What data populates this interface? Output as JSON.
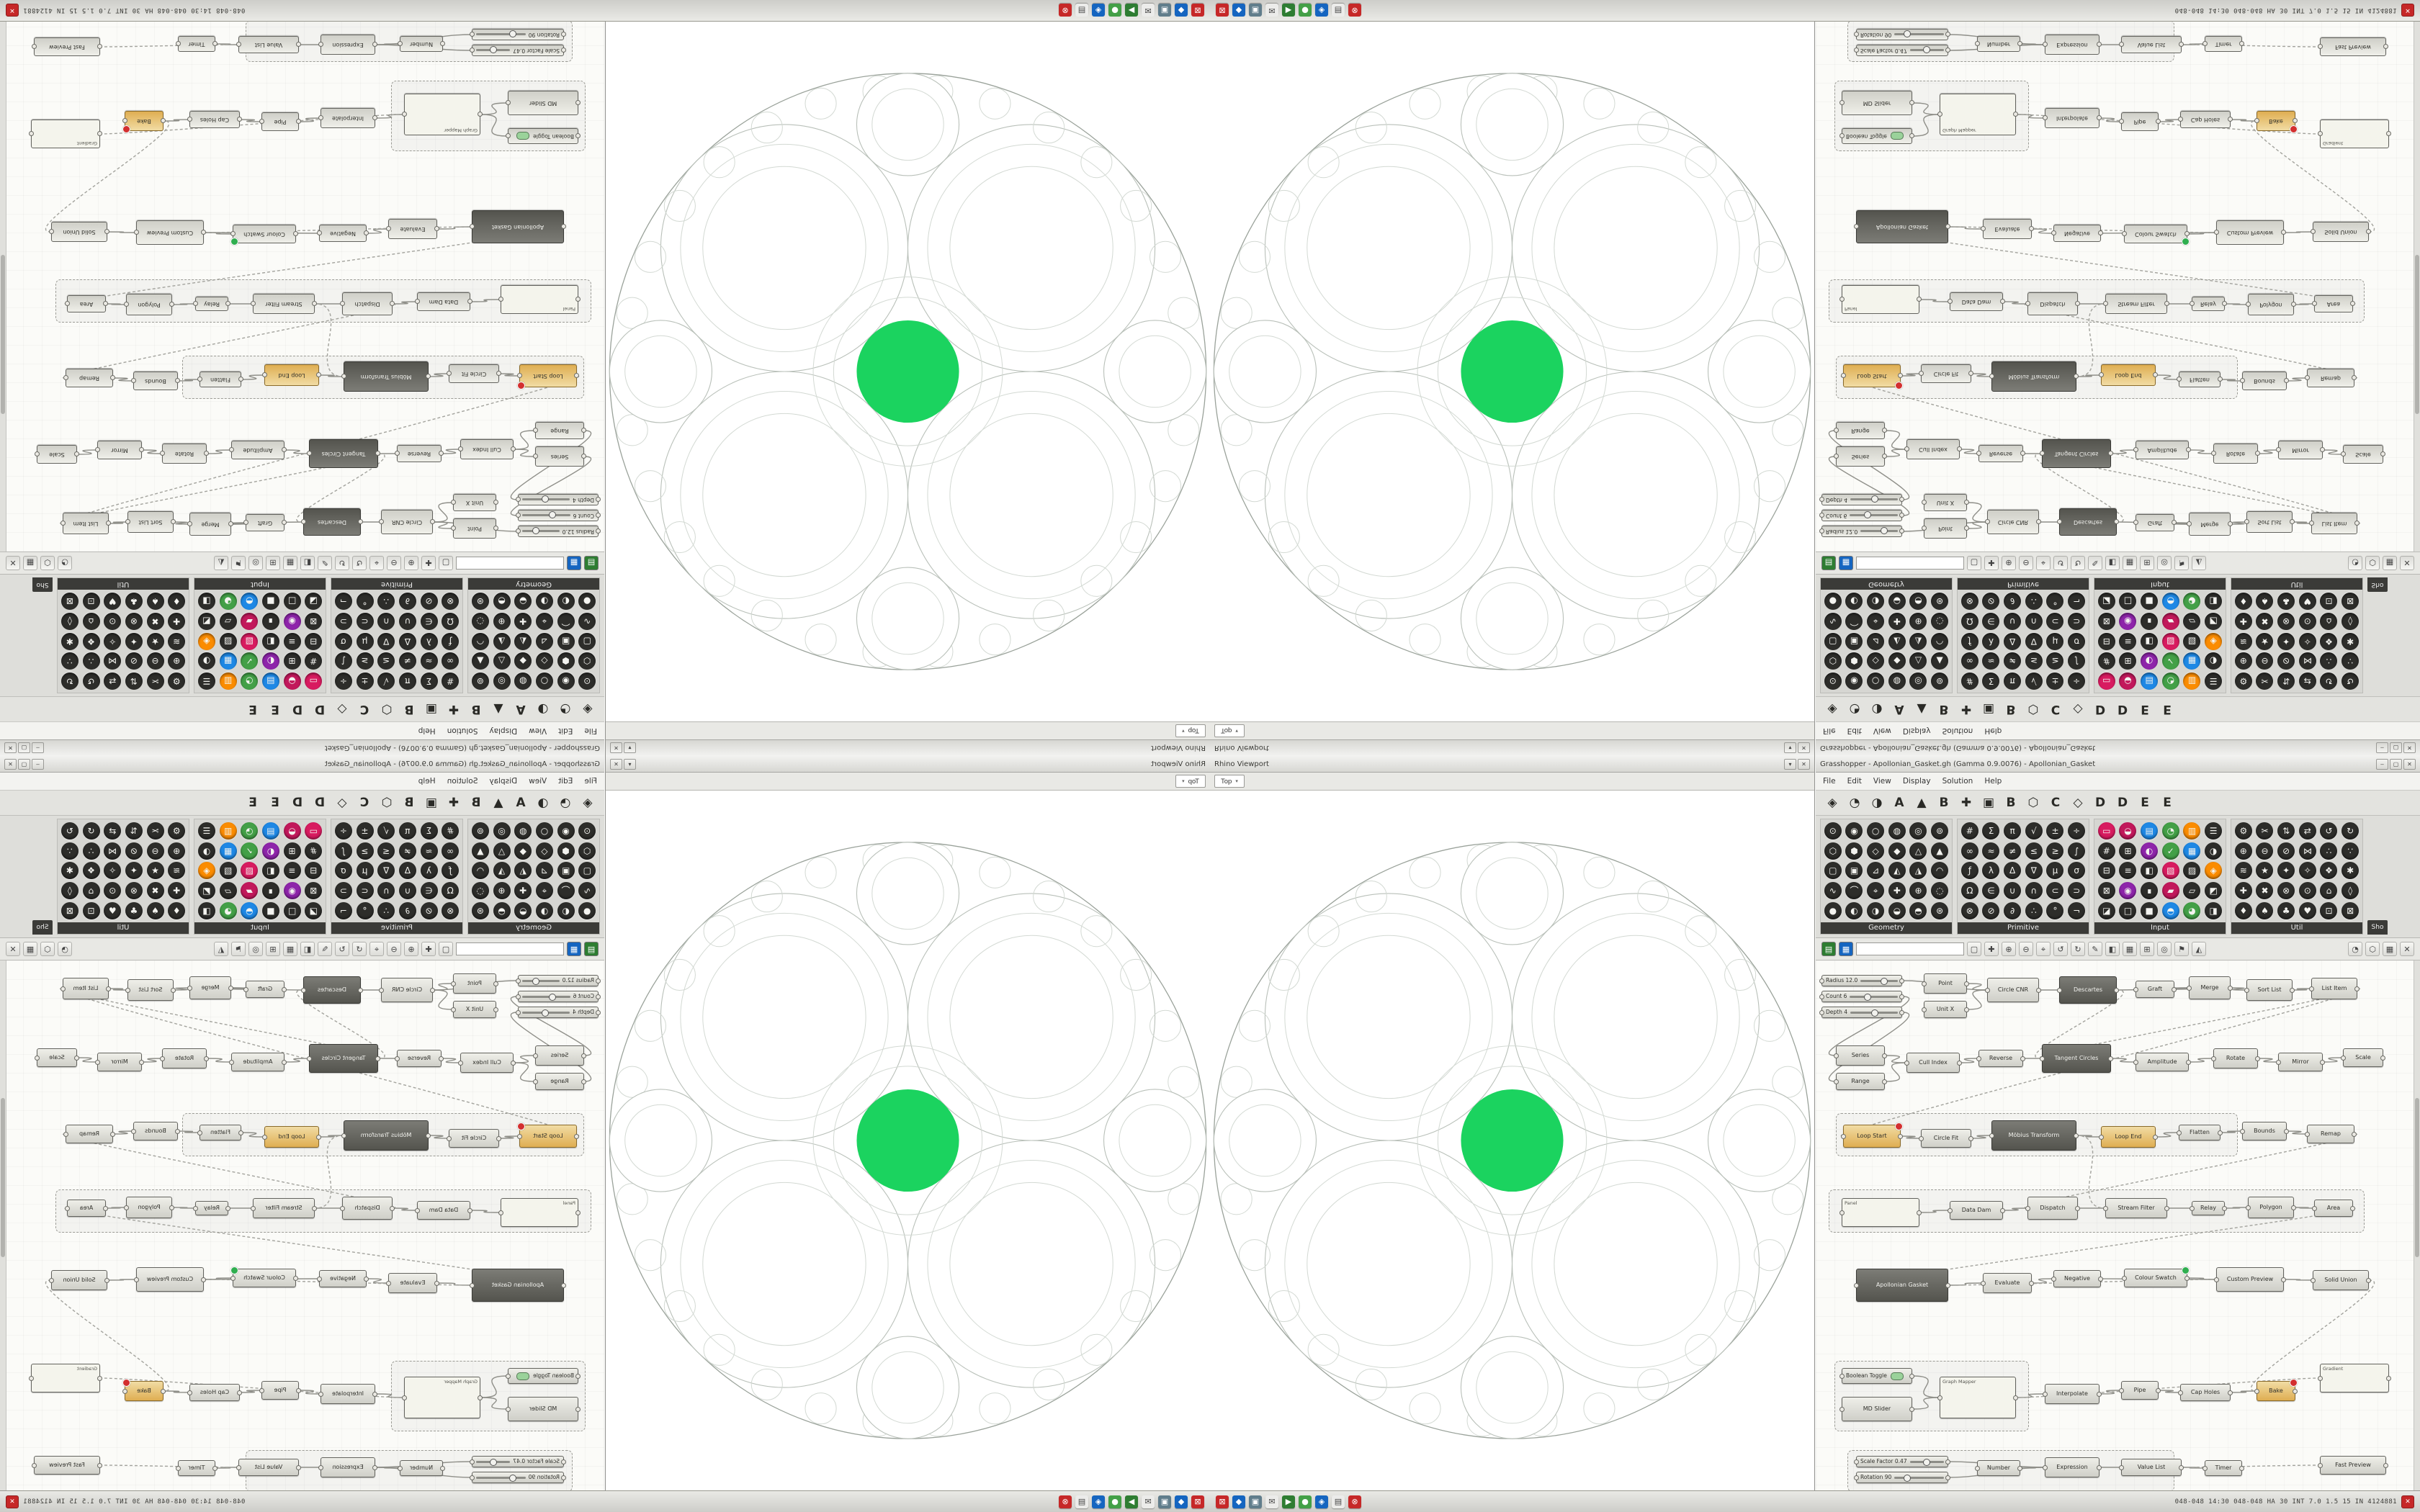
{
  "accent": {
    "green": "#1bd35f"
  },
  "taskbar": {
    "status": "048-048 14:30 048-048 HA 30 INT 7.0 1.5 15 IN 4124881",
    "close_glyph": "✕",
    "icons": [
      [
        "⊠",
        "#c62828",
        ""
      ],
      [
        "◆",
        "#1565c0",
        ""
      ],
      [
        "▣",
        "#607d8b",
        ""
      ],
      [
        "✉",
        "#ececea",
        "#444"
      ],
      [
        "▶",
        "#2e7d32",
        ""
      ],
      [
        "●",
        "#43a047",
        ""
      ],
      [
        "◈",
        "#1565c0",
        ""
      ],
      [
        "▤",
        "#ececea",
        "#444"
      ],
      [
        "⊗",
        "#c62828",
        ""
      ]
    ]
  },
  "rhino": {
    "title": "Rhino Viewport",
    "tab": "Top",
    "buttons": [
      "▾",
      "✕"
    ],
    "fractal": {
      "green": "#1bd35f",
      "stroke_dark": "#9aa29a",
      "stroke": "#b9c0b9",
      "stroke_light": "#d3d9d3",
      "outer_radius": 415,
      "center_ratio": 0.1716,
      "child_ratio": 0.47,
      "spacing": 1.45,
      "max_depth": 6
    }
  },
  "gh": {
    "title": "Grasshopper - Apollonian_Gasket.gh (Gamma 0.9.0076) - Apollonian_Gasket",
    "buttons": [
      "–",
      "▢",
      "✕"
    ],
    "menu": [
      "File",
      "Edit",
      "View",
      "Display",
      "Solution",
      "Help"
    ],
    "tabstrip": [
      "◈",
      "◔",
      "◑",
      "A",
      "▲",
      "B",
      "✚",
      "▣",
      "B",
      "⬡",
      "C",
      "◇",
      "D",
      "D",
      "E",
      "E"
    ],
    "ribbon": {
      "more_label": "Sho",
      "groups": [
        {
          "label": "Geometry",
          "icons": [
            "⊙",
            "◉",
            "○",
            "◍",
            "◎",
            "⊚",
            "⬡",
            "⬢",
            "◇",
            "◆",
            "△",
            "▲",
            "▢",
            "▣",
            "⊿",
            "◭",
            "◮",
            "◠",
            "∿",
            "⌒",
            "⌖",
            "✚",
            "⊕",
            "◌",
            "●",
            "◐",
            "◑",
            "◒",
            "◓",
            "⊛"
          ]
        },
        {
          "label": "Primitive",
          "icons": [
            "#",
            "Σ",
            "π",
            "√",
            "±",
            "÷",
            "∞",
            "≈",
            "≠",
            "≤",
            "≥",
            "∫",
            "ƒ",
            "λ",
            "Δ",
            "∇",
            "μ",
            "σ",
            "Ω",
            "∈",
            "∪",
            "∩",
            "⊂",
            "⊃",
            "⊗",
            "⊘",
            "∂",
            "∴",
            "°",
            "¬"
          ]
        },
        {
          "label": "Input",
          "icons": [
            "▭|#d81b60",
            "◒|#c2185b",
            "▤|#1e88e5",
            "◔|#43a047",
            "▥|#fb8c00",
            "☰",
            "#",
            "⊞",
            "◐|#8e24aa",
            "✓|#43a047",
            "▦|#1e88e5",
            "◑",
            "⊟",
            "≡",
            "◧",
            "▧|#d81b60",
            "▨",
            "◈|#fb8c00",
            "⊠",
            "◉|#8e24aa",
            "∎",
            "▰|#c2185b",
            "▱",
            "◩",
            "◪",
            "□",
            "■",
            "◓|#1e88e5",
            "◕|#43a047",
            "◨"
          ]
        },
        {
          "label": "Util",
          "icons": [
            "⚙",
            "✂",
            "⇅",
            "⇄",
            "↺",
            "↻",
            "⊕",
            "⊖",
            "⊘",
            "⋈",
            "∴",
            "∵",
            "≋",
            "★",
            "✦",
            "✧",
            "❖",
            "✱",
            "✚",
            "✖",
            "⊗",
            "⊙",
            "⌂",
            "◊",
            "♦",
            "♠",
            "♣",
            "♥",
            "⊡",
            "⊠"
          ]
        }
      ]
    },
    "toolbar": {
      "colored": [
        [
          "▤",
          "#2e7d32"
        ],
        [
          "▦",
          "#1565c0"
        ]
      ],
      "search_value": "",
      "icons": [
        "▢",
        "✚",
        "⊕",
        "⊖",
        "⌖",
        "↺",
        "↻",
        "✎",
        "◧",
        "▦",
        "⊞",
        "◎",
        "⚑",
        "◭"
      ],
      "right_icons": [
        "◔",
        "⬡",
        "▦",
        "✕"
      ]
    },
    "canvas": {
      "nodes": [
        [
          8,
          20,
          112,
          16,
          "Radius 12.0",
          "s",
          0.62
        ],
        [
          8,
          42,
          112,
          16,
          "Count 6",
          "s",
          0.35
        ],
        [
          8,
          64,
          112,
          16,
          "Depth 4",
          "s",
          0.5
        ],
        [
          150,
          18,
          60,
          28,
          "Point",
          "n"
        ],
        [
          150,
          56,
          60,
          24,
          "Unit X",
          "n"
        ],
        [
          238,
          24,
          72,
          34,
          "Circle CNR",
          "n"
        ],
        [
          338,
          22,
          80,
          38,
          "Descartes",
          "d"
        ],
        [
          444,
          28,
          54,
          24,
          "Graft",
          "n"
        ],
        [
          518,
          22,
          58,
          32,
          "Merge",
          "n"
        ],
        [
          598,
          26,
          64,
          30,
          "Sort List",
          "n"
        ],
        [
          688,
          24,
          64,
          30,
          "List Item",
          "n"
        ],
        [
          28,
          118,
          68,
          28,
          "Series",
          "n"
        ],
        [
          28,
          156,
          68,
          24,
          "Range",
          "n"
        ],
        [
          126,
          128,
          74,
          28,
          "Cull Index",
          "n"
        ],
        [
          226,
          124,
          62,
          24,
          "Reverse",
          "n"
        ],
        [
          314,
          116,
          96,
          40,
          "Tangent Circles",
          "d"
        ],
        [
          444,
          128,
          74,
          26,
          "Amplitude",
          "n"
        ],
        [
          552,
          122,
          62,
          28,
          "Rotate",
          "n"
        ],
        [
          642,
          128,
          62,
          26,
          "Mirror",
          "n"
        ],
        [
          732,
          122,
          56,
          26,
          "Scale",
          "n"
        ],
        [
          38,
          228,
          80,
          32,
          "Loop Start",
          "w"
        ],
        [
          146,
          234,
          70,
          26,
          "Circle Fit",
          "n"
        ],
        [
          244,
          222,
          118,
          42,
          "Möbius Transform",
          "d"
        ],
        [
          396,
          230,
          76,
          30,
          "Loop End",
          "w"
        ],
        [
          504,
          228,
          58,
          22,
          "Flatten",
          "n"
        ],
        [
          592,
          224,
          62,
          26,
          "Bounds",
          "n"
        ],
        [
          682,
          228,
          66,
          26,
          "Remap",
          "n"
        ],
        [
          36,
          330,
          108,
          40,
          "Panel",
          "p"
        ],
        [
          186,
          334,
          74,
          26,
          "Data Dam",
          "n"
        ],
        [
          294,
          328,
          70,
          32,
          "Dispatch",
          "n"
        ],
        [
          402,
          330,
          86,
          28,
          "Stream Filter",
          "n"
        ],
        [
          522,
          334,
          46,
          20,
          "Relay",
          "n"
        ],
        [
          600,
          328,
          64,
          30,
          "Polygon",
          "n"
        ],
        [
          692,
          332,
          54,
          24,
          "Area",
          "n"
        ],
        [
          56,
          428,
          128,
          46,
          "Apollonian Gasket",
          "d"
        ],
        [
          232,
          434,
          68,
          28,
          "Evaluate",
          "n"
        ],
        [
          330,
          430,
          66,
          24,
          "Negative",
          "n"
        ],
        [
          428,
          428,
          88,
          26,
          "Colour Swatch",
          "n"
        ],
        [
          556,
          426,
          94,
          34,
          "Custom Preview",
          "n"
        ],
        [
          690,
          430,
          78,
          28,
          "Solid Union",
          "n"
        ],
        [
          36,
          566,
          98,
          22,
          "Boolean Toggle",
          "t"
        ],
        [
          36,
          606,
          98,
          34,
          "MD Slider",
          "n"
        ],
        [
          172,
          578,
          106,
          58,
          "Graph Mapper",
          "p"
        ],
        [
          318,
          588,
          76,
          28,
          "Interpolate",
          "n"
        ],
        [
          424,
          584,
          52,
          26,
          "Pipe",
          "n"
        ],
        [
          506,
          588,
          70,
          24,
          "Cap Holes",
          "n"
        ],
        [
          612,
          584,
          54,
          28,
          "Bake",
          "w"
        ],
        [
          56,
          688,
          128,
          16,
          "Scale Factor 0.47",
          "s",
          0.47
        ],
        [
          56,
          710,
          128,
          16,
          "Rotation 90",
          "s",
          0.25
        ],
        [
          224,
          694,
          60,
          22,
          "Number",
          "n"
        ],
        [
          318,
          690,
          76,
          28,
          "Expression",
          "n"
        ],
        [
          424,
          692,
          84,
          24,
          "Value List",
          "n"
        ],
        [
          540,
          694,
          52,
          22,
          "Timer",
          "n"
        ],
        [
          700,
          560,
          96,
          40,
          "Gradient",
          "p"
        ],
        [
          700,
          688,
          92,
          26,
          "Fast Preview",
          "n"
        ]
      ],
      "wires": [
        [
          0,
          5
        ],
        [
          3,
          5
        ],
        [
          4,
          5
        ],
        [
          5,
          6
        ],
        [
          6,
          8
        ],
        [
          7,
          8
        ],
        [
          8,
          9
        ],
        [
          9,
          10
        ],
        [
          1,
          11
        ],
        [
          2,
          12
        ],
        [
          11,
          13
        ],
        [
          12,
          13
        ],
        [
          13,
          14
        ],
        [
          14,
          15
        ],
        [
          15,
          16
        ],
        [
          16,
          17
        ],
        [
          17,
          18
        ],
        [
          18,
          19
        ],
        [
          10,
          15,
          1
        ],
        [
          10,
          20,
          1
        ],
        [
          20,
          21
        ],
        [
          21,
          22
        ],
        [
          22,
          23
        ],
        [
          23,
          24
        ],
        [
          24,
          25
        ],
        [
          25,
          26
        ],
        [
          26,
          29,
          1
        ],
        [
          27,
          28
        ],
        [
          28,
          29
        ],
        [
          29,
          30
        ],
        [
          30,
          31
        ],
        [
          31,
          32
        ],
        [
          32,
          33
        ],
        [
          22,
          30,
          1
        ],
        [
          33,
          34,
          1
        ],
        [
          34,
          35
        ],
        [
          35,
          36
        ],
        [
          36,
          38
        ],
        [
          37,
          38
        ],
        [
          38,
          39
        ],
        [
          34,
          38,
          1
        ],
        [
          40,
          42
        ],
        [
          41,
          42
        ],
        [
          42,
          43
        ],
        [
          43,
          44
        ],
        [
          44,
          45
        ],
        [
          45,
          46
        ],
        [
          39,
          46,
          1
        ],
        [
          47,
          50
        ],
        [
          48,
          50
        ],
        [
          49,
          50
        ],
        [
          50,
          51
        ],
        [
          51,
          52
        ],
        [
          51,
          54,
          1
        ],
        [
          42,
          53,
          1
        ],
        [
          6,
          15,
          1
        ]
      ],
      "groups": [
        [
          28,
          212,
          556,
          58
        ],
        [
          18,
          318,
          742,
          58
        ],
        [
          26,
          556,
          268,
          96
        ],
        [
          44,
          680,
          452,
          56
        ]
      ],
      "badges": {
        "error": [
          20,
          46
        ],
        "ok": [
          37
        ]
      }
    }
  }
}
